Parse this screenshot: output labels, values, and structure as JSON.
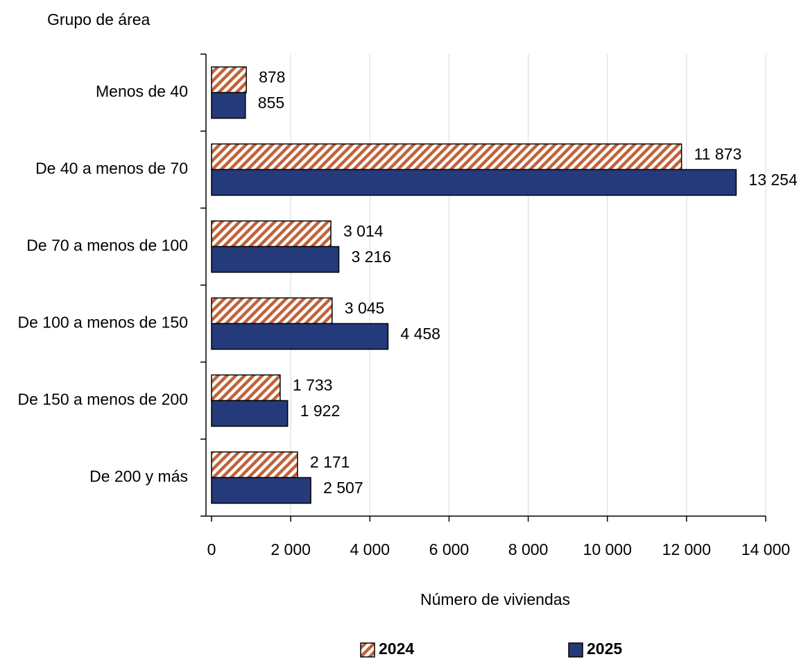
{
  "chart_data": {
    "type": "barh",
    "title": "Grupo de área",
    "x_label": "Número de viviendas",
    "categories": [
      "Menos de 40",
      "De 40 a menos de 70",
      "De 70 a menos de 100",
      "De 100 a menos de 150",
      "De 150 a menos de 200",
      "De 200 y más"
    ],
    "series": [
      {
        "name": "2024",
        "color": "#c0633a",
        "hatch": true,
        "values": [
          878,
          11873,
          3014,
          3045,
          1733,
          2171
        ],
        "value_labels": [
          "878",
          "11 873",
          "3 014",
          "3 045",
          "1 733",
          "2 171"
        ]
      },
      {
        "name": "2025",
        "color": "#253a7a",
        "hatch": false,
        "values": [
          855,
          13254,
          3216,
          4458,
          1922,
          2507
        ],
        "value_labels": [
          "855",
          "13 254",
          "3 216",
          "4 458",
          "1 922",
          "2 507"
        ]
      }
    ],
    "xlim": [
      0,
      14000
    ],
    "xticks": [
      0,
      {
        "value": 2000,
        "label": "2 000"
      },
      {
        "value": 4000,
        "label": "4 000"
      },
      {
        "value": 6000,
        "label": "6 000"
      },
      {
        "value": 8000,
        "label": "8 000"
      },
      {
        "value": 10000,
        "label": "10 000"
      },
      {
        "value": 12000,
        "label": "12 000"
      },
      {
        "value": 14000,
        "label": "14 000"
      }
    ],
    "grid": true
  }
}
